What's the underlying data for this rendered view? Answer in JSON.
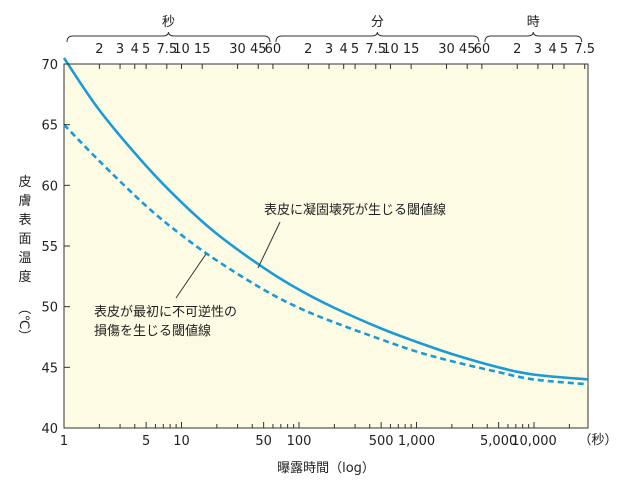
{
  "chart_data": {
    "type": "line",
    "xlabel": "曝露時間（log）",
    "ylabel_chars": [
      "皮",
      "膚",
      "表",
      "面",
      "温",
      "度"
    ],
    "ylabel_unit": "（℃）",
    "x_unit": "（秒）",
    "x_scale": "log",
    "xlim": [
      1,
      28800
    ],
    "ylim": [
      40,
      70
    ],
    "yticks": [
      40,
      45,
      50,
      55,
      60,
      65,
      70
    ],
    "xticks_bottom": [
      {
        "v": 1,
        "label": "1"
      },
      {
        "v": 5,
        "label": "5"
      },
      {
        "v": 10,
        "label": "10"
      },
      {
        "v": 50,
        "label": "50"
      },
      {
        "v": 100,
        "label": "100"
      },
      {
        "v": 500,
        "label": "500"
      },
      {
        "v": 1000,
        "label": "1,000"
      },
      {
        "v": 5000,
        "label": "5,000"
      },
      {
        "v": 10000,
        "label": "10,000"
      }
    ],
    "top_axis": {
      "sections": [
        {
          "label": "秒",
          "from": 1,
          "to": 60
        },
        {
          "label": "分",
          "from": 60,
          "to": 3600
        },
        {
          "label": "時",
          "from": 3600,
          "to": 27000
        }
      ],
      "ticks": [
        {
          "v": 2,
          "label": "2"
        },
        {
          "v": 3,
          "label": "3"
        },
        {
          "v": 4,
          "label": "4"
        },
        {
          "v": 5,
          "label": "5"
        },
        {
          "v": 7.5,
          "label": "7.5"
        },
        {
          "v": 10,
          "label": "10"
        },
        {
          "v": 15,
          "label": "15"
        },
        {
          "v": 30,
          "label": "30"
        },
        {
          "v": 45,
          "label": "45"
        },
        {
          "v": 60,
          "label": "60"
        },
        {
          "v": 120,
          "label": "2"
        },
        {
          "v": 180,
          "label": "3"
        },
        {
          "v": 240,
          "label": "4"
        },
        {
          "v": 300,
          "label": "5"
        },
        {
          "v": 450,
          "label": "7.5"
        },
        {
          "v": 600,
          "label": "10"
        },
        {
          "v": 900,
          "label": "15"
        },
        {
          "v": 1800,
          "label": "30"
        },
        {
          "v": 2700,
          "label": "45"
        },
        {
          "v": 3600,
          "label": "60"
        },
        {
          "v": 7200,
          "label": "2"
        },
        {
          "v": 10800,
          "label": "3"
        },
        {
          "v": 14400,
          "label": "4"
        },
        {
          "v": 18000,
          "label": "5"
        },
        {
          "v": 27000,
          "label": "7.5"
        }
      ]
    },
    "series": [
      {
        "name": "表皮に凝固壊死が生じる閾値線",
        "style": "solid",
        "color": "#1a9ad6",
        "points": [
          [
            1,
            70.5
          ],
          [
            2,
            66.2
          ],
          [
            5,
            61.6
          ],
          [
            10,
            58.6
          ],
          [
            20,
            56.0
          ],
          [
            50,
            53.2
          ],
          [
            100,
            51.4
          ],
          [
            200,
            49.9
          ],
          [
            500,
            48.2
          ],
          [
            1000,
            47.1
          ],
          [
            2000,
            46.1
          ],
          [
            5000,
            45.0
          ],
          [
            10000,
            44.4
          ],
          [
            28800,
            44.0
          ]
        ]
      },
      {
        "name": "表皮が最初に不可逆性の損傷を生じる閾値線",
        "style": "dashed",
        "color": "#1a9ad6",
        "points": [
          [
            1,
            65.0
          ],
          [
            2,
            62.0
          ],
          [
            5,
            58.3
          ],
          [
            10,
            55.9
          ],
          [
            20,
            53.8
          ],
          [
            50,
            51.4
          ],
          [
            100,
            49.9
          ],
          [
            200,
            48.7
          ],
          [
            500,
            47.3
          ],
          [
            1000,
            46.3
          ],
          [
            2000,
            45.5
          ],
          [
            5000,
            44.6
          ],
          [
            10000,
            44.0
          ],
          [
            28800,
            43.6
          ]
        ]
      }
    ],
    "annotations": [
      {
        "lines": [
          "表皮に凝固壊死が生じる閾値線"
        ],
        "series": 0
      },
      {
        "lines": [
          "表皮が最初に不可逆性の",
          "損傷を生じる閾値線"
        ],
        "series": 1
      }
    ],
    "colors": {
      "plot_bg": "#fdfbe4",
      "line": "#1a9ad6",
      "axis": "#333333"
    }
  }
}
